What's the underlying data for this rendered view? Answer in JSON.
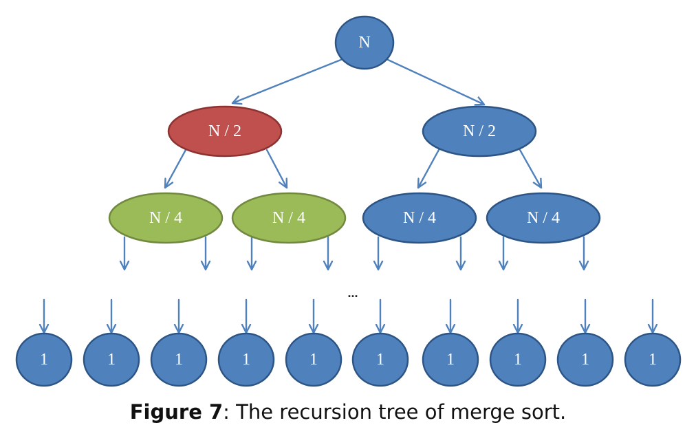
{
  "diagram": {
    "colors": {
      "blue_fill": "#4f81bd",
      "blue_stroke": "#2c5484",
      "red_fill": "#c0504d",
      "red_stroke": "#8c3230",
      "green_fill": "#9bbb59",
      "green_stroke": "#71893f",
      "edge": "#4f81bd"
    },
    "root": {
      "label": "N",
      "color": "blue"
    },
    "level1": [
      {
        "label": "N / 2",
        "color": "red"
      },
      {
        "label": "N / 2",
        "color": "blue"
      }
    ],
    "level2": [
      {
        "label": "N / 4",
        "color": "green"
      },
      {
        "label": "N / 4",
        "color": "green"
      },
      {
        "label": "N / 4",
        "color": "blue"
      },
      {
        "label": "N / 4",
        "color": "blue"
      }
    ],
    "ellipsis": "...",
    "leaves": [
      "1",
      "1",
      "1",
      "1",
      "1",
      "1",
      "1",
      "1",
      "1",
      "1"
    ]
  },
  "caption": {
    "label": "Figure 7",
    "text": ": The recursion tree of merge sort."
  }
}
